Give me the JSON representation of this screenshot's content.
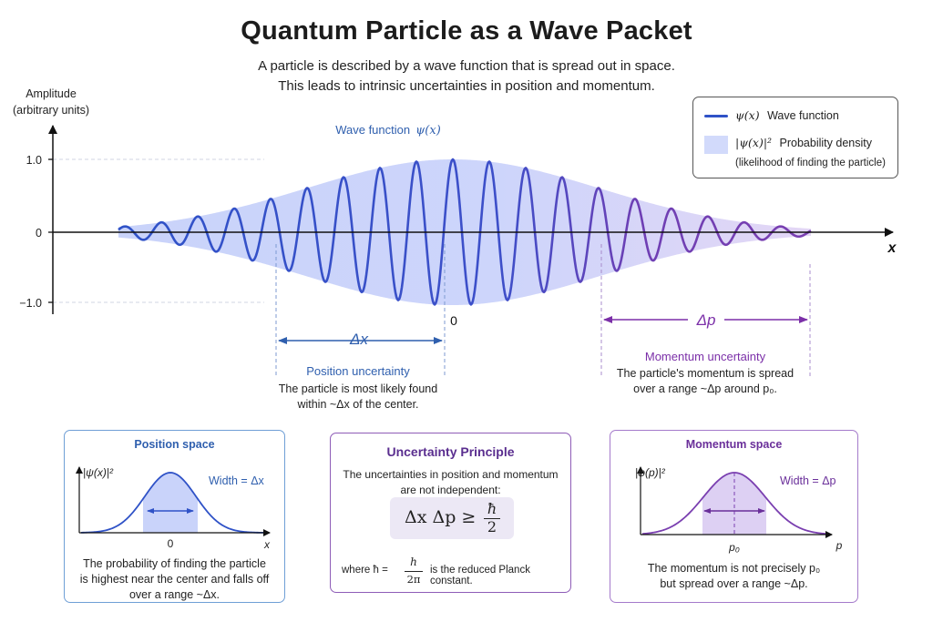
{
  "header": {
    "title": "Quantum Particle as a Wave Packet",
    "subtitle_line1": "A particle is described by a wave function that is spread out in space.",
    "subtitle_line2": "This leads to intrinsic uncertainties in position and momentum."
  },
  "main_plot": {
    "y_axis_label_line1": "Amplitude",
    "y_axis_label_line2": "(arbitrary units)",
    "y_ticks": [
      "1.0",
      "0",
      "−1.0"
    ],
    "x_axis_label": "x",
    "origin_label": "0",
    "wave_label": "Wave function",
    "wave_label_math": "ψ(x)",
    "delta_x_label": "Δx",
    "delta_p_label": "Δp",
    "position_uncertainty": {
      "title": "Position uncertainty",
      "line1": "The particle is most likely found",
      "line2": "within ~Δx of the center."
    },
    "momentum_uncertainty": {
      "title": "Momentum uncertainty",
      "line1": "The particle's momentum is spread",
      "line2": "over a range ~Δp around p₀."
    }
  },
  "legend": {
    "wave_math": "ψ(x)",
    "wave_text": "Wave function",
    "density_math": "|ψ(x)|²",
    "density_text": "Probability density",
    "density_note": "(likelihood of finding the particle)"
  },
  "position_card": {
    "title": "Position space",
    "y_label": "|ψ(x)|²",
    "width_label": "Width = Δx",
    "x_tick": "0",
    "x_label": "x",
    "line1": "The probability of finding the particle",
    "line2": "is highest near the center and falls off",
    "line3": "over a range ~Δx."
  },
  "principle_card": {
    "title": "Uncertainty Principle",
    "line1": "The uncertainties in position and momentum",
    "line2": "are not independent:",
    "formula": "Δx Δp ≥",
    "formula_num": "ħ",
    "formula_den": "2",
    "where_prefix": "where ħ =",
    "where_num": "h",
    "where_den": "2π",
    "where_suffix": "is the reduced Planck constant."
  },
  "momentum_card": {
    "title": "Momentum space",
    "y_label": "|φ(p)|²",
    "width_label": "Width = Δp",
    "x_tick": "p₀",
    "x_label": "p",
    "line1": "The momentum is not precisely p₀",
    "line2": "but spread over a range ~Δp."
  },
  "colors": {
    "blue": "#2f52c7",
    "purple": "#7a3fb0",
    "fill_blue": "#c9d3fa",
    "fill_purple": "#ddd0f3",
    "label_blue": "#2f5fae",
    "label_purple": "#7b2fa8"
  }
}
